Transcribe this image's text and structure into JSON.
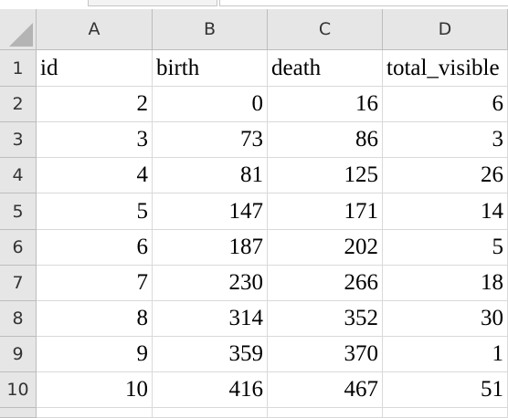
{
  "columns": [
    "A",
    "B",
    "C",
    "D"
  ],
  "rows": [
    "1",
    "2",
    "3",
    "4",
    "5",
    "6",
    "7",
    "8",
    "9",
    "10"
  ],
  "header_row": [
    "id",
    "birth",
    "death",
    "total_visible"
  ],
  "data_rows": [
    [
      "2",
      "0",
      "16",
      "6"
    ],
    [
      "3",
      "73",
      "86",
      "3"
    ],
    [
      "4",
      "81",
      "125",
      "26"
    ],
    [
      "5",
      "147",
      "171",
      "14"
    ],
    [
      "6",
      "187",
      "202",
      "5"
    ],
    [
      "7",
      "230",
      "266",
      "18"
    ],
    [
      "8",
      "314",
      "352",
      "30"
    ],
    [
      "9",
      "359",
      "370",
      "1"
    ],
    [
      "10",
      "416",
      "467",
      "51"
    ]
  ],
  "colors": {
    "header_bg": "#e6e6e6",
    "gridline": "#d9d9d9"
  }
}
